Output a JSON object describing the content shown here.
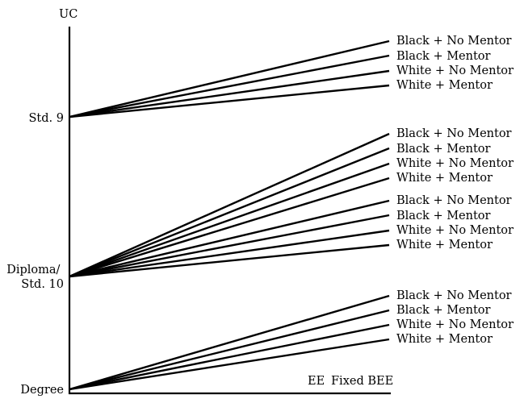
{
  "axis": {
    "y_label": "UC",
    "x_labels": {
      "left": "EE",
      "right": "Fixed BEE"
    }
  },
  "groups": [
    {
      "origin_label": "Std. 9",
      "lines": [
        "Black + No Mentor",
        "Black + Mentor",
        "White + No Mentor",
        "White + Mentor"
      ]
    },
    {
      "origin_label_lines": [
        "Diploma/",
        "Std. 10"
      ],
      "lines": [
        "Black + No Mentor",
        "Black + Mentor",
        "White + No Mentor",
        "White + Mentor",
        "Black + No Mentor",
        "Black + Mentor",
        "White + No Mentor",
        "White + Mentor"
      ]
    },
    {
      "origin_label": "Degree",
      "lines": [
        "Black + No Mentor",
        "Black + Mentor",
        "White + No Mentor",
        "White + Mentor"
      ]
    }
  ]
}
